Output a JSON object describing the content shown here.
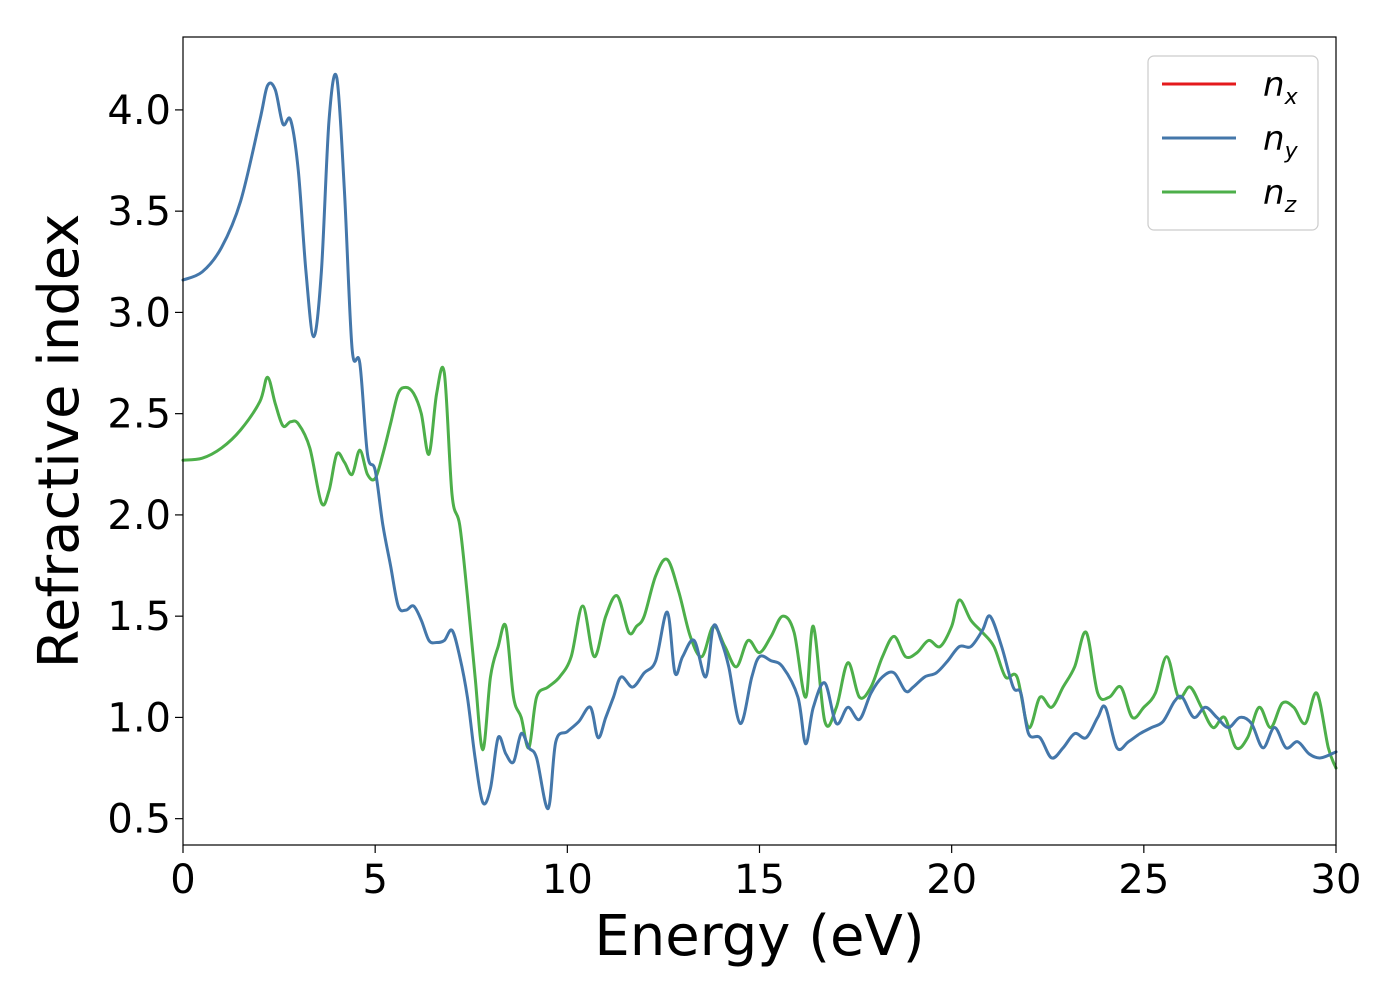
{
  "chart_data": {
    "type": "line",
    "xlabel": "Energy (eV)",
    "ylabel": "Refractive index",
    "xlim": [
      0,
      30
    ],
    "ylim": [
      0.37,
      4.36
    ],
    "xticks": [
      "0",
      "5",
      "10",
      "15",
      "20",
      "25",
      "30"
    ],
    "yticks": [
      "0.5",
      "1.0",
      "1.5",
      "2.0",
      "2.5",
      "3.0",
      "3.5",
      "4.0"
    ],
    "grid": false,
    "legend_position": "top-right",
    "series": [
      {
        "name": "n_x",
        "label_base": "n",
        "label_sub": "x",
        "color": "#e41a1c",
        "x": [
          0,
          0.5,
          1,
          1.5,
          2,
          2.2,
          2.4,
          2.6,
          2.8,
          3,
          3.2,
          3.4,
          3.6,
          3.8,
          4,
          4.2,
          4.4,
          4.6,
          4.8,
          5,
          5.2,
          5.4,
          5.6,
          5.8,
          6,
          6.2,
          6.4,
          6.6,
          6.8,
          7,
          7.2,
          7.4,
          7.6,
          7.8,
          8,
          8.2,
          8.4,
          8.6,
          8.8,
          9,
          9.2,
          9.5,
          9.7,
          10,
          10.3,
          10.6,
          10.8,
          11,
          11.2,
          11.4,
          11.7,
          12,
          12.3,
          12.6,
          12.8,
          13,
          13.3,
          13.6,
          13.8,
          14,
          14.2,
          14.5,
          14.8,
          15,
          15.3,
          15.6,
          16,
          16.2,
          16.4,
          16.7,
          17,
          17.3,
          17.6,
          17.9,
          18.2,
          18.5,
          18.8,
          19,
          19.3,
          19.6,
          19.9,
          20.2,
          20.5,
          20.8,
          21,
          21.3,
          21.6,
          21.8,
          22,
          22.3,
          22.6,
          22.9,
          23.2,
          23.5,
          23.8,
          24,
          24.3,
          24.6,
          24.9,
          25.2,
          25.5,
          25.8,
          26,
          26.3,
          26.6,
          26.9,
          27.2,
          27.5,
          27.8,
          28.1,
          28.4,
          28.7,
          29,
          29.3,
          29.6,
          30
        ],
        "y": [
          3.16,
          3.2,
          3.32,
          3.55,
          3.95,
          4.12,
          4.1,
          3.93,
          3.95,
          3.7,
          3.2,
          2.88,
          3.2,
          3.95,
          4.16,
          3.6,
          2.82,
          2.75,
          2.3,
          2.22,
          1.95,
          1.75,
          1.55,
          1.53,
          1.55,
          1.48,
          1.38,
          1.37,
          1.38,
          1.43,
          1.3,
          1.1,
          0.8,
          0.58,
          0.65,
          0.9,
          0.82,
          0.78,
          0.92,
          0.85,
          0.8,
          0.55,
          0.88,
          0.93,
          0.98,
          1.05,
          0.9,
          1.0,
          1.1,
          1.2,
          1.15,
          1.22,
          1.28,
          1.52,
          1.22,
          1.3,
          1.38,
          1.2,
          1.45,
          1.38,
          1.25,
          0.97,
          1.2,
          1.3,
          1.28,
          1.25,
          1.1,
          0.87,
          1.05,
          1.17,
          0.97,
          1.05,
          0.99,
          1.12,
          1.2,
          1.22,
          1.13,
          1.15,
          1.2,
          1.22,
          1.28,
          1.35,
          1.35,
          1.43,
          1.5,
          1.35,
          1.15,
          1.12,
          0.92,
          0.9,
          0.8,
          0.85,
          0.92,
          0.9,
          1.0,
          1.05,
          0.85,
          0.88,
          0.92,
          0.95,
          0.98,
          1.08,
          1.1,
          1.0,
          1.05,
          1.0,
          0.95,
          1.0,
          0.97,
          0.85,
          0.95,
          0.85,
          0.88,
          0.82,
          0.8,
          0.83
        ],
        "visible": false
      },
      {
        "name": "n_y",
        "label_base": "n",
        "label_sub": "y",
        "color": "#4477aa",
        "x": [
          0,
          0.5,
          1,
          1.5,
          2,
          2.2,
          2.4,
          2.6,
          2.8,
          3,
          3.2,
          3.4,
          3.6,
          3.8,
          4,
          4.2,
          4.4,
          4.6,
          4.8,
          5,
          5.2,
          5.4,
          5.6,
          5.8,
          6,
          6.2,
          6.4,
          6.6,
          6.8,
          7,
          7.2,
          7.4,
          7.6,
          7.8,
          8,
          8.2,
          8.4,
          8.6,
          8.8,
          9,
          9.2,
          9.5,
          9.7,
          10,
          10.3,
          10.6,
          10.8,
          11,
          11.2,
          11.4,
          11.7,
          12,
          12.3,
          12.6,
          12.8,
          13,
          13.3,
          13.6,
          13.8,
          14,
          14.2,
          14.5,
          14.8,
          15,
          15.3,
          15.6,
          16,
          16.2,
          16.4,
          16.7,
          17,
          17.3,
          17.6,
          17.9,
          18.2,
          18.5,
          18.8,
          19,
          19.3,
          19.6,
          19.9,
          20.2,
          20.5,
          20.8,
          21,
          21.3,
          21.6,
          21.8,
          22,
          22.3,
          22.6,
          22.9,
          23.2,
          23.5,
          23.8,
          24,
          24.3,
          24.6,
          24.9,
          25.2,
          25.5,
          25.8,
          26,
          26.3,
          26.6,
          26.9,
          27.2,
          27.5,
          27.8,
          28.1,
          28.4,
          28.7,
          29,
          29.3,
          29.6,
          30
        ],
        "y": [
          3.16,
          3.2,
          3.32,
          3.55,
          3.95,
          4.12,
          4.1,
          3.93,
          3.95,
          3.7,
          3.2,
          2.88,
          3.2,
          3.95,
          4.16,
          3.6,
          2.82,
          2.75,
          2.3,
          2.22,
          1.95,
          1.75,
          1.55,
          1.53,
          1.55,
          1.48,
          1.38,
          1.37,
          1.38,
          1.43,
          1.3,
          1.1,
          0.8,
          0.58,
          0.65,
          0.9,
          0.82,
          0.78,
          0.92,
          0.85,
          0.8,
          0.55,
          0.88,
          0.93,
          0.98,
          1.05,
          0.9,
          1.0,
          1.1,
          1.2,
          1.15,
          1.22,
          1.28,
          1.52,
          1.22,
          1.3,
          1.38,
          1.2,
          1.45,
          1.38,
          1.25,
          0.97,
          1.2,
          1.3,
          1.28,
          1.25,
          1.1,
          0.87,
          1.05,
          1.17,
          0.97,
          1.05,
          0.99,
          1.12,
          1.2,
          1.22,
          1.13,
          1.15,
          1.2,
          1.22,
          1.28,
          1.35,
          1.35,
          1.43,
          1.5,
          1.35,
          1.15,
          1.12,
          0.92,
          0.9,
          0.8,
          0.85,
          0.92,
          0.9,
          1.0,
          1.05,
          0.85,
          0.88,
          0.92,
          0.95,
          0.98,
          1.08,
          1.1,
          1.0,
          1.05,
          1.0,
          0.95,
          1.0,
          0.97,
          0.85,
          0.95,
          0.85,
          0.88,
          0.82,
          0.8,
          0.83
        ],
        "visible": true
      },
      {
        "name": "n_z",
        "label_base": "n",
        "label_sub": "z",
        "color": "#4daf4a",
        "x": [
          0,
          0.5,
          1,
          1.5,
          2,
          2.2,
          2.4,
          2.6,
          2.8,
          3,
          3.3,
          3.6,
          3.8,
          4,
          4.2,
          4.4,
          4.6,
          4.8,
          5,
          5.2,
          5.4,
          5.6,
          5.8,
          6,
          6.2,
          6.4,
          6.6,
          6.8,
          7,
          7.2,
          7.4,
          7.6,
          7.8,
          8,
          8.2,
          8.4,
          8.6,
          8.8,
          9,
          9.2,
          9.5,
          9.8,
          10.1,
          10.4,
          10.7,
          11,
          11.3,
          11.6,
          11.8,
          12,
          12.3,
          12.6,
          12.9,
          13.2,
          13.5,
          13.8,
          14.1,
          14.4,
          14.7,
          15,
          15.3,
          15.6,
          15.9,
          16.2,
          16.4,
          16.7,
          17,
          17.3,
          17.6,
          17.9,
          18.2,
          18.5,
          18.8,
          19.1,
          19.4,
          19.7,
          20,
          20.2,
          20.5,
          20.8,
          21.1,
          21.4,
          21.7,
          22,
          22.3,
          22.6,
          22.9,
          23.2,
          23.5,
          23.8,
          24.1,
          24.4,
          24.7,
          25,
          25.3,
          25.6,
          25.9,
          26.2,
          26.5,
          26.8,
          27.1,
          27.4,
          27.7,
          28,
          28.3,
          28.6,
          28.9,
          29.2,
          29.5,
          29.8,
          30
        ],
        "y": [
          2.27,
          2.28,
          2.33,
          2.42,
          2.56,
          2.68,
          2.55,
          2.44,
          2.46,
          2.45,
          2.33,
          2.06,
          2.12,
          2.3,
          2.26,
          2.2,
          2.32,
          2.2,
          2.18,
          2.3,
          2.45,
          2.6,
          2.63,
          2.6,
          2.5,
          2.3,
          2.6,
          2.7,
          2.1,
          1.95,
          1.6,
          1.2,
          0.84,
          1.2,
          1.35,
          1.45,
          1.1,
          1.0,
          0.85,
          1.1,
          1.15,
          1.2,
          1.3,
          1.55,
          1.3,
          1.5,
          1.6,
          1.42,
          1.45,
          1.5,
          1.7,
          1.78,
          1.62,
          1.4,
          1.3,
          1.45,
          1.35,
          1.25,
          1.38,
          1.32,
          1.4,
          1.5,
          1.42,
          1.1,
          1.45,
          0.98,
          1.05,
          1.27,
          1.1,
          1.15,
          1.3,
          1.4,
          1.3,
          1.32,
          1.38,
          1.35,
          1.45,
          1.58,
          1.48,
          1.42,
          1.35,
          1.2,
          1.2,
          0.95,
          1.1,
          1.05,
          1.15,
          1.25,
          1.42,
          1.12,
          1.1,
          1.15,
          1.0,
          1.05,
          1.12,
          1.3,
          1.1,
          1.15,
          1.05,
          0.95,
          1.0,
          0.85,
          0.9,
          1.05,
          0.95,
          1.07,
          1.05,
          0.97,
          1.12,
          0.85,
          0.75
        ]
      }
    ]
  }
}
